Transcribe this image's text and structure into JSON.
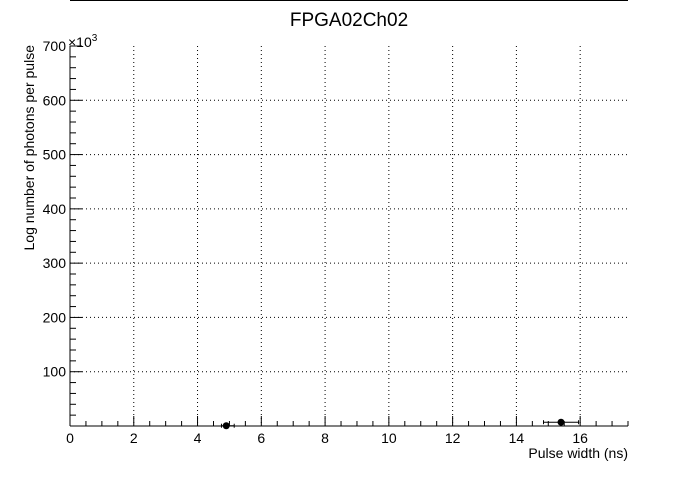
{
  "chart_data": {
    "type": "scatter",
    "title": "FPGA02Ch02",
    "xlabel": "Pulse width (ns)",
    "ylabel": "Log number of photons per pulse",
    "y_multiplier_label": "×10",
    "y_multiplier_exponent": "3",
    "xlim": [
      0,
      17.5
    ],
    "ylim": [
      0,
      700
    ],
    "x_ticks": [
      0,
      2,
      4,
      6,
      8,
      10,
      12,
      14,
      16
    ],
    "y_ticks": [
      100,
      200,
      300,
      400,
      500,
      600,
      700
    ],
    "x_minor_step": 0.5,
    "y_minor_step": 20,
    "grid": true,
    "grid_style": "dotted",
    "points": [
      {
        "x": 4.9,
        "y": 0.5,
        "xerr_low": 4.75,
        "xerr_high": 5.15
      },
      {
        "x": 15.4,
        "y": 7,
        "xerr_low": 14.85,
        "xerr_high": 15.95
      }
    ],
    "colors": {
      "marker": "#000000",
      "grid": "#000000",
      "axis": "#000000"
    }
  }
}
